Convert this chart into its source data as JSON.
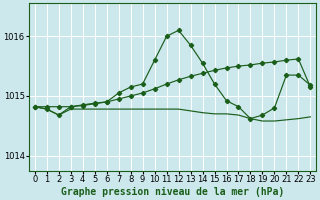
{
  "title": "Graphe pression niveau de la mer (hPa)",
  "bg_color": "#cce8ec",
  "grid_color": "#ffffff",
  "line_color": "#1a5e1a",
  "xlim": [
    -0.5,
    23.5
  ],
  "ylim": [
    1013.75,
    1016.55
  ],
  "yticks": [
    1014,
    1015,
    1016
  ],
  "xticks": [
    0,
    1,
    2,
    3,
    4,
    5,
    6,
    7,
    8,
    9,
    10,
    11,
    12,
    13,
    14,
    15,
    16,
    17,
    18,
    19,
    20,
    21,
    22,
    23
  ],
  "peaked_x": [
    0,
    1,
    2,
    3,
    4,
    5,
    6,
    7,
    8,
    9,
    10,
    11,
    12,
    13,
    14,
    15,
    16,
    17,
    18,
    19,
    20,
    21,
    22,
    23
  ],
  "peaked_y": [
    1014.82,
    1014.78,
    1014.68,
    1014.82,
    1014.85,
    1014.88,
    1014.9,
    1015.05,
    1015.15,
    1015.2,
    1015.6,
    1016.0,
    1016.1,
    1015.85,
    1015.55,
    1015.2,
    1014.92,
    1014.82,
    1014.62,
    1014.68,
    1014.8,
    1015.35,
    1015.35,
    1015.18
  ],
  "rising_x": [
    0,
    1,
    2,
    3,
    4,
    5,
    6,
    7,
    8,
    9,
    10,
    11,
    12,
    13,
    14,
    15,
    16,
    17,
    18,
    19,
    20,
    21,
    22,
    23
  ],
  "rising_y": [
    1014.82,
    1014.82,
    1014.82,
    1014.82,
    1014.84,
    1014.87,
    1014.9,
    1014.95,
    1015.0,
    1015.05,
    1015.12,
    1015.2,
    1015.27,
    1015.33,
    1015.38,
    1015.43,
    1015.47,
    1015.5,
    1015.52,
    1015.55,
    1015.57,
    1015.6,
    1015.62,
    1015.15
  ],
  "flat_x": [
    0,
    1,
    2,
    3,
    4,
    5,
    6,
    7,
    8,
    9,
    10,
    11,
    12,
    13,
    14,
    15,
    16,
    17,
    18,
    19,
    20,
    21,
    22,
    23
  ],
  "flat_y": [
    1014.82,
    1014.78,
    1014.68,
    1014.78,
    1014.78,
    1014.78,
    1014.78,
    1014.78,
    1014.78,
    1014.78,
    1014.78,
    1014.78,
    1014.78,
    1014.75,
    1014.72,
    1014.7,
    1014.7,
    1014.68,
    1014.62,
    1014.58,
    1014.58,
    1014.6,
    1014.62,
    1014.65
  ],
  "xlabel_fontsize": 7.0,
  "tick_fontsize": 6.0
}
